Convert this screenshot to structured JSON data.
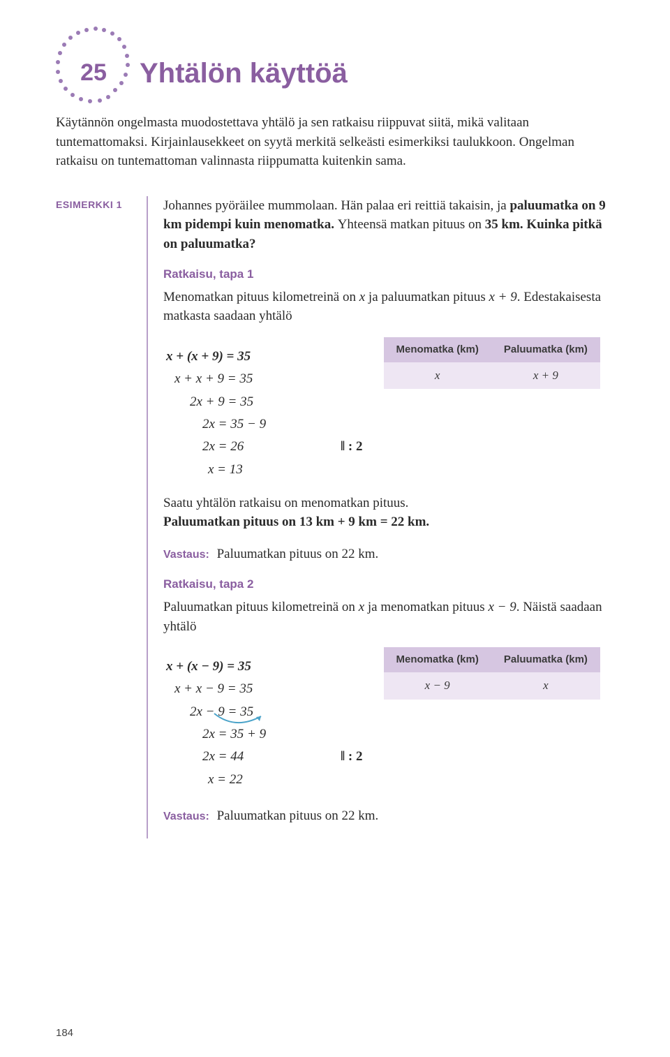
{
  "chapter": {
    "number": "25",
    "title": "Yhtälön käyttöä"
  },
  "intro": "Käytännön ongelmasta muodostettava yhtälö ja sen ratkaisu riippuvat siitä, mikä valitaan tuntemattomaksi. Kirjainlausekkeet on syytä merkitä selkeästi esimerkiksi taulukkoon. Ongelman ratkaisu on tuntemattoman valinnasta riippumatta kuitenkin sama.",
  "example": {
    "label": "ESIMERKKI 1",
    "problem_pre": "Johannes pyöräilee mummolaan. Hän palaa eri reittiä takaisin, ja ",
    "problem_bold1": "paluumatka on 9 km pidempi kuin menomatka. ",
    "problem_mid": "Yhteensä matkan pituus on ",
    "problem_bold2": "35 km. Kuinka pitkä on paluumatka?",
    "solution1": {
      "heading": "Ratkaisu, tapa 1",
      "lead_pre": "Menomatkan pituus kilometreinä on ",
      "lead_var1": "x",
      "lead_mid": " ja paluumatkan pituus ",
      "lead_var2": "x + 9",
      "lead_post": ". Edestakaisesta matkasta saadaan yhtälö",
      "table": {
        "headers": [
          "Menomatka (km)",
          "Paluumatka (km)"
        ],
        "row": [
          "x",
          "x + 9"
        ]
      },
      "equations": [
        {
          "text": "x + (x + 9) = 35",
          "bold": true,
          "indent": 0
        },
        {
          "text": "x + x + 9 = 35",
          "bold": false,
          "indent": 12
        },
        {
          "text": "2x + 9 = 35",
          "bold": false,
          "indent": 34
        },
        {
          "text": "2x = 35 − 9",
          "bold": false,
          "indent": 52
        },
        {
          "text": "2x = 26",
          "bold": false,
          "indent": 52,
          "op": "‖ : 2"
        },
        {
          "text": "x = 13",
          "bold": false,
          "indent": 60
        }
      ],
      "conclusion_pre": "Saatu yhtälön ratkaisu on menomatkan pituus.",
      "conclusion_bold": "Paluumatkan pituus on 13 km + 9 km = 22 km.",
      "answer_label": "Vastaus:",
      "answer_text": "Paluumatkan pituus on 22 km."
    },
    "solution2": {
      "heading": "Ratkaisu, tapa 2",
      "lead_pre": "Paluumatkan pituus kilometreinä on ",
      "lead_var1": "x",
      "lead_mid": " ja menomatkan pituus ",
      "lead_var2": "x − 9",
      "lead_post": ". Näistä saadaan yhtälö",
      "table": {
        "headers": [
          "Menomatka (km)",
          "Paluumatka (km)"
        ],
        "row": [
          "x − 9",
          "x"
        ]
      },
      "equations": [
        {
          "text": "x + (x − 9) = 35",
          "bold": true,
          "indent": 0
        },
        {
          "text": "x + x − 9 = 35",
          "bold": false,
          "indent": 12
        },
        {
          "text": "2x − 9 = 35",
          "bold": false,
          "indent": 34,
          "arc": true
        },
        {
          "text": "2x = 35 + 9",
          "bold": false,
          "indent": 52
        },
        {
          "text": "2x = 44",
          "bold": false,
          "indent": 52,
          "op": "‖ : 2"
        },
        {
          "text": "x = 22",
          "bold": false,
          "indent": 60
        }
      ],
      "answer_label": "Vastaus:",
      "answer_text": "Paluumatkan pituus on 22 km."
    }
  },
  "page_number": "184",
  "colors": {
    "accent": "#8a5ea0",
    "accent_light": "#b89fc9",
    "table_header_bg": "#d6c6e1",
    "table_row_bg": "#eee6f3",
    "text": "#2a2a2a",
    "arc": "#4aa3c9"
  }
}
